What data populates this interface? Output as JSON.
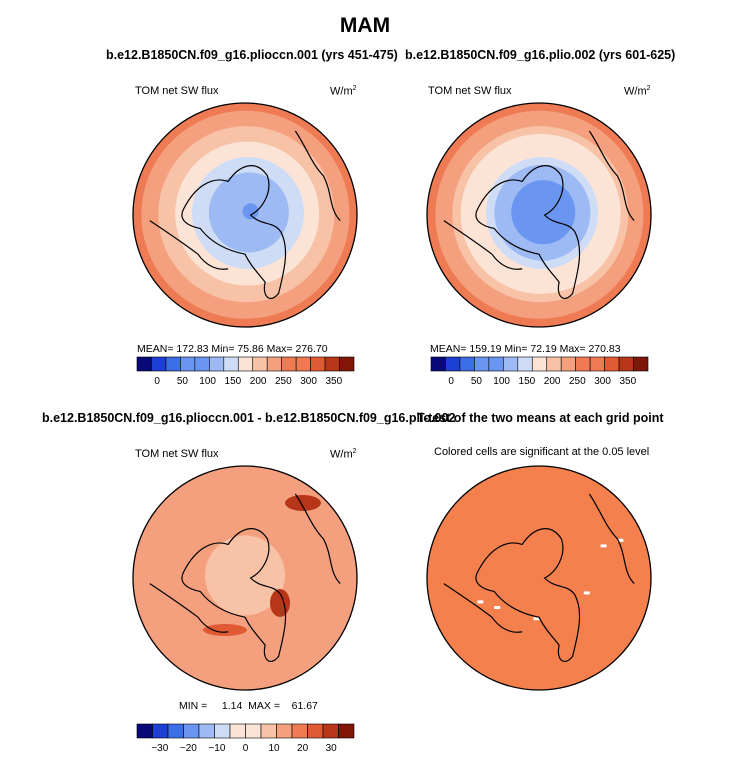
{
  "figure_title": "MAM",
  "colors": {
    "diverging": [
      "#08087a",
      "#1c3fd4",
      "#3c6ee8",
      "#6a95f0",
      "#9ebaf4",
      "#cfdcf6",
      "#fbe3d6",
      "#f7c2a6",
      "#f4a07e",
      "#ef7b54",
      "#e05a33",
      "#b73518",
      "#7f1606"
    ],
    "ttest_fill": "#f4804e",
    "coastline": "#000000"
  },
  "panels": [
    {
      "title": "b.e12.B1850CN.f09_g16.plioccn.001 (yrs 451-475)",
      "left_label": "TOM net SW flux",
      "units": "W/m",
      "units_exp": "2",
      "stats": "MEAN= 172.83   Min=   75.86   Max= 276.70",
      "colorbar_ticks": [
        "0",
        "50",
        "100",
        "150",
        "200",
        "250",
        "300",
        "350"
      ]
    },
    {
      "title": "b.e12.B1850CN.f09_g16.plio.002 (yrs 601-625)",
      "left_label": "TOM net SW flux",
      "units": "W/m",
      "units_exp": "2",
      "stats": "MEAN= 159.19   Min=   72.19   Max= 270.83",
      "colorbar_ticks": [
        "0",
        "50",
        "100",
        "150",
        "200",
        "250",
        "300",
        "350"
      ]
    },
    {
      "title": "b.e12.B1850CN.f09_g16.plioccn.001 - b.e12.B1850CN.f09_g16.plio.002",
      "left_label": "TOM net SW flux",
      "units": "W/m",
      "units_exp": "2",
      "stats": "MIN =     1.14  MAX =    61.67",
      "colorbar_ticks": [
        "−30",
        "−20",
        "−10",
        "0",
        "10",
        "20",
        "30"
      ]
    },
    {
      "title": "T-test of the two means at each grid point",
      "left_label": "Colored cells are significant at the 0.05 level"
    }
  ],
  "chart_data": [
    {
      "type": "heatmap",
      "projection": "north-polar-stereographic",
      "title": "b.e12.B1850CN.f09_g16.plioccn.001 (yrs 451-475)",
      "variable": "TOM net SW flux",
      "units": "W/m2",
      "mean": 172.83,
      "min": 75.86,
      "max": 276.7,
      "levels": [
        0,
        25,
        50,
        75,
        100,
        125,
        150,
        175,
        200,
        225,
        250,
        275,
        300,
        325,
        350
      ],
      "radial_profile": [
        [
          0,
          95
        ],
        [
          0.3,
          110
        ],
        [
          0.45,
          135
        ],
        [
          0.55,
          160
        ],
        [
          0.65,
          190
        ],
        [
          0.8,
          225
        ],
        [
          1.0,
          260
        ]
      ]
    },
    {
      "type": "heatmap",
      "projection": "north-polar-stereographic",
      "title": "b.e12.B1850CN.f09_g16.plio.002 (yrs 601-625)",
      "variable": "TOM net SW flux",
      "units": "W/m2",
      "mean": 159.19,
      "min": 72.19,
      "max": 270.83,
      "levels": [
        0,
        25,
        50,
        75,
        100,
        125,
        150,
        175,
        200,
        225,
        250,
        275,
        300,
        325,
        350
      ],
      "radial_profile": [
        [
          0,
          88
        ],
        [
          0.3,
          100
        ],
        [
          0.45,
          120
        ],
        [
          0.55,
          148
        ],
        [
          0.65,
          180
        ],
        [
          0.8,
          215
        ],
        [
          1.0,
          255
        ]
      ]
    },
    {
      "type": "heatmap",
      "projection": "north-polar-stereographic",
      "title": "b.e12.B1850CN.f09_g16.plioccn.001 - b.e12.B1850CN.f09_g16.plio.002",
      "variable": "TOM net SW flux difference",
      "units": "W/m2",
      "min": 1.14,
      "max": 61.67,
      "levels": [
        -35,
        -30,
        -25,
        -20,
        -15,
        -10,
        -5,
        0,
        5,
        10,
        15,
        20,
        25,
        30,
        35
      ],
      "radial_profile": [
        [
          0,
          5
        ],
        [
          0.3,
          8
        ],
        [
          0.5,
          12
        ],
        [
          0.7,
          15
        ],
        [
          1.0,
          14
        ]
      ]
    },
    {
      "type": "heatmap",
      "projection": "north-polar-stereographic",
      "title": "T-test of the two means at each grid point",
      "subtitle": "Colored cells are significant at the 0.05 level",
      "significant_fraction": 0.99
    }
  ]
}
